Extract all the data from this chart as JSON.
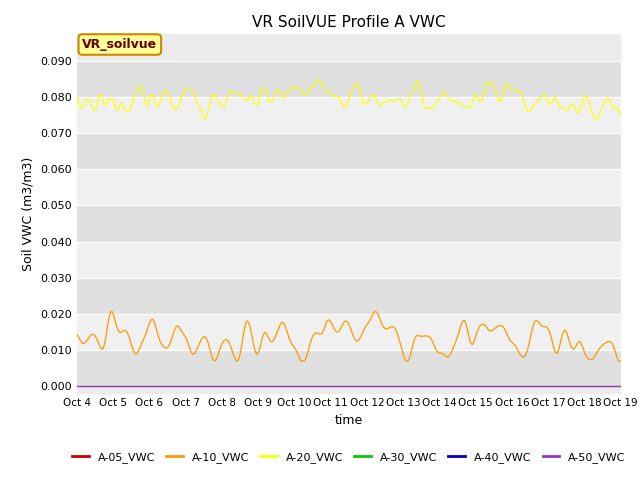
{
  "title": "VR SoilVUE Profile A VWC",
  "ylabel": "Soil VWC (m3/m3)",
  "xlabel": "time",
  "ylim": [
    -0.002,
    0.0975
  ],
  "yticks": [
    0.0,
    0.01,
    0.02,
    0.03,
    0.04,
    0.05,
    0.06,
    0.07,
    0.08,
    0.09
  ],
  "x_labels": [
    "Oct 4",
    "Oct 5",
    "Oct 6",
    "Oct 7",
    "Oct 8",
    "Oct 9",
    "Oct 10",
    "Oct 11",
    "Oct 12",
    "Oct 13",
    "Oct 14",
    "Oct 15",
    "Oct 16",
    "Oct 17",
    "Oct 18",
    "Oct 19"
  ],
  "bg_color": "#ebebeb",
  "fig_bg": "#ffffff",
  "band_color_light": "#e0e0e0",
  "band_color_dark": "#f0f0f0",
  "legend_box_color": "#ffff99",
  "legend_box_edge": "#cc8800",
  "legend_label": "VR_soilvue",
  "series": [
    {
      "label": "A-05_VWC",
      "color": "#cc0000"
    },
    {
      "label": "A-10_VWC",
      "color": "#ff9900"
    },
    {
      "label": "A-20_VWC",
      "color": "#ffff00"
    },
    {
      "label": "A-30_VWC",
      "color": "#00cc00"
    },
    {
      "label": "A-40_VWC",
      "color": "#0000cc"
    },
    {
      "label": "A-50_VWC",
      "color": "#9933cc"
    }
  ],
  "n_points": 400,
  "seed": 42
}
